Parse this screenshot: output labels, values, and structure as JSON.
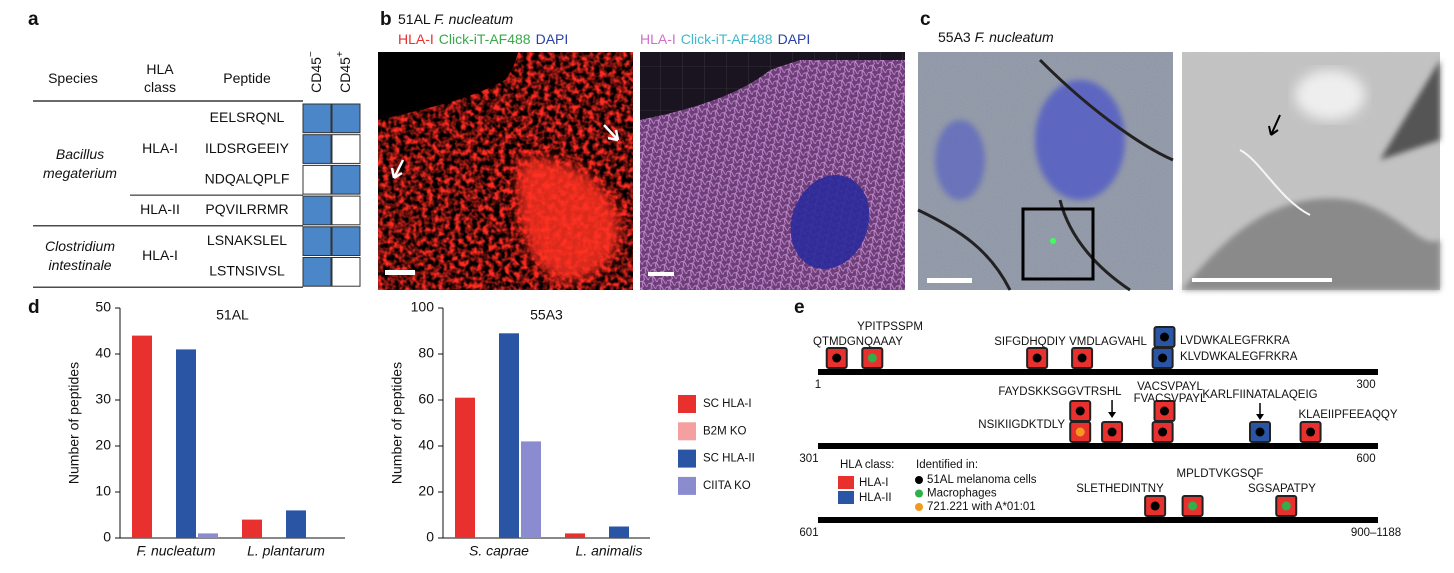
{
  "panel_labels": [
    "a",
    "b",
    "c",
    "d",
    "e"
  ],
  "table": {
    "headers": [
      "Species",
      "HLA class",
      "Peptide"
    ],
    "cd45_headers": [
      {
        "text": "CD45",
        "sup": "−"
      },
      {
        "text": "CD45",
        "sup": "+"
      }
    ],
    "positive_color": "#4a86c8",
    "groups": [
      {
        "species": "Bacillus megaterium",
        "classes": [
          {
            "hla": "HLA-I",
            "peptides": [
              {
                "sequence": "EELSRQNL",
                "cd45": [
                  true,
                  true
                ]
              },
              {
                "sequence": "ILDSRGEEIY",
                "cd45": [
                  true,
                  false
                ]
              },
              {
                "sequence": "NDQALQPLF",
                "cd45": [
                  false,
                  true
                ]
              }
            ]
          },
          {
            "hla": "HLA-II",
            "peptides": [
              {
                "sequence": "PQVILRRMR",
                "cd45": [
                  true,
                  false
                ]
              }
            ]
          }
        ]
      },
      {
        "species": "Clostridium intestinale",
        "classes": [
          {
            "hla": "HLA-I",
            "peptides": [
              {
                "sequence": "LSNAKSLEL",
                "cd45": [
                  true,
                  true
                ]
              },
              {
                "sequence": "LSTNSIVSL",
                "cd45": [
                  true,
                  false
                ]
              }
            ]
          }
        ]
      }
    ]
  },
  "panel_b": {
    "sample": "51AL",
    "organism": "F. nucleatum",
    "channels": [
      [
        {
          "text": "HLA-I",
          "color": "#e8302e"
        },
        {
          "text": "Click-iT-AF488",
          "color": "#3aa84a"
        },
        {
          "text": "DAPI",
          "color": "#2a3fa8"
        }
      ],
      [
        {
          "text": "HLA-I",
          "color": "#d46fc8"
        },
        {
          "text": "Click-iT-AF488",
          "color": "#3fb8d0"
        },
        {
          "text": "DAPI",
          "color": "#2a3fa8"
        }
      ]
    ]
  },
  "panel_c": {
    "sample": "55A3",
    "organism": "F. nucleatum"
  },
  "chart_data": [
    {
      "type": "bar",
      "title": "51AL",
      "ylabel": "Number of peptides",
      "categories": [
        "F. nucleatum",
        "L. plantarum"
      ],
      "series": [
        {
          "name": "SC HLA-I",
          "color": "#e8302e",
          "values": [
            44,
            4
          ]
        },
        {
          "name": "B2M KO",
          "color": "#f4a0a0",
          "values": [
            0,
            0
          ]
        },
        {
          "name": "SC HLA-II",
          "color": "#2a55a5",
          "values": [
            41,
            6
          ]
        },
        {
          "name": "CIITA KO",
          "color": "#8a8ccf",
          "values": [
            1,
            0
          ]
        }
      ],
      "ylim": [
        0,
        50
      ],
      "yticks": [
        0,
        10,
        20,
        30,
        40,
        50
      ]
    },
    {
      "type": "bar",
      "title": "55A3",
      "ylabel": "Number of peptides",
      "categories": [
        "S. caprae",
        "L. animalis"
      ],
      "series": [
        {
          "color": "#e8302e",
          "values": [
            61,
            2
          ]
        },
        {
          "color": "#f4a0a0",
          "values": [
            0,
            0
          ]
        },
        {
          "color": "#2a55a5",
          "values": [
            89,
            5
          ]
        },
        {
          "color": "#8a8ccf",
          "values": [
            42,
            0
          ]
        }
      ],
      "ylim": [
        0,
        100
      ],
      "yticks": [
        0,
        20,
        40,
        60,
        80,
        100
      ]
    }
  ],
  "panel_e": {
    "rows": [
      {
        "start": 1,
        "end": 300
      },
      {
        "start": 301,
        "end": 600
      },
      {
        "start": 601,
        "end": {
          "value": 900,
          "label": "900–1188"
        }
      }
    ],
    "classes": {
      "title": "HLA class:",
      "items": [
        {
          "name": "HLA-I",
          "color": "#e8302e"
        },
        {
          "name": "HLA-II",
          "color": "#2a55a5"
        }
      ]
    },
    "sources": {
      "title": "Identified in:",
      "items": [
        {
          "name": "51AL melanoma cells",
          "color": "#000000"
        },
        {
          "name": "Macrophages",
          "color": "#2fb04a"
        },
        {
          "name": "721.221 with A*01:01",
          "color": "#f39a1e"
        }
      ]
    },
    "peptides": [
      {
        "sequence": "QTMDGNQAAAY",
        "position": 11,
        "class": 0,
        "sources": [
          0
        ]
      },
      {
        "sequence": "YPITPSSPM",
        "position": 30,
        "class": 0,
        "sources": [
          1
        ]
      },
      {
        "sequence": "SIFGDHQDIY",
        "position": 118,
        "class": 0,
        "sources": [
          0
        ]
      },
      {
        "sequence": "VMDLAGVAHL",
        "position": 142,
        "class": 0,
        "sources": [
          0
        ]
      },
      {
        "sequence": "LVDWKALEGFRKRA",
        "position": 186,
        "class": 1,
        "sources": [
          0
        ]
      },
      {
        "sequence": "KLVDWKALEGFRKRA",
        "position": 185,
        "class": 1,
        "sources": [
          0
        ]
      },
      {
        "sequence": "NSIKIIGDKTDLY",
        "position": 441,
        "class": 0,
        "sources": [
          0,
          2
        ]
      },
      {
        "sequence": "FAYDSKKSGGVTRSHL",
        "position": 458,
        "class": 0,
        "sources": [
          0
        ]
      },
      {
        "sequence": "VACSVPAYL",
        "position": 486,
        "class": 0,
        "sources": [
          0
        ]
      },
      {
        "sequence": "FVACSVPAYL",
        "position": 485,
        "class": 0,
        "sources": [
          0
        ]
      },
      {
        "sequence": "KARLFIINATALAQEIG",
        "position": 537,
        "class": 1,
        "sources": [
          0
        ]
      },
      {
        "sequence": "KLAEIIPFEEAQQY",
        "position": 564,
        "class": 0,
        "sources": [
          0
        ]
      },
      {
        "sequence": "SLETHEDINTNY",
        "position": 781,
        "class": 0,
        "sources": [
          0
        ]
      },
      {
        "sequence": "MPLDTVKGSQF",
        "position": 801,
        "class": 0,
        "sources": [
          1
        ]
      },
      {
        "sequence": "SGSAPATPY",
        "position": 851,
        "class": 0,
        "sources": [
          1
        ]
      }
    ]
  }
}
